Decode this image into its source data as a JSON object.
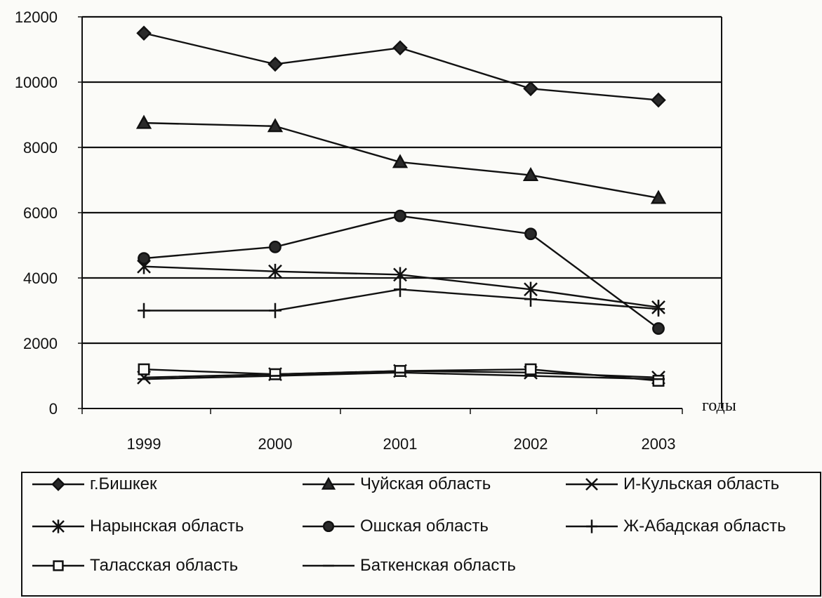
{
  "chart_data": {
    "type": "line",
    "categories": [
      "1999",
      "2000",
      "2001",
      "2002",
      "2003"
    ],
    "ylim": [
      0,
      12000
    ],
    "yticks": [
      "0",
      "2000",
      "4000",
      "6000",
      "8000",
      "10000",
      "12000"
    ],
    "xlabel": "годы",
    "ylabel": "",
    "title": "",
    "grid": "horizontal",
    "legend_position": "bottom",
    "series": [
      {
        "name": "г.Бишкек",
        "marker": "diamond",
        "values": [
          11500,
          10550,
          11050,
          9800,
          9450
        ]
      },
      {
        "name": "Чуйская область",
        "marker": "triangle",
        "values": [
          8750,
          8650,
          7550,
          7150,
          6450
        ]
      },
      {
        "name": "И-Кульская область",
        "marker": "x",
        "values": [
          950,
          1050,
          1150,
          1100,
          950
        ]
      },
      {
        "name": "Нарынская область",
        "marker": "asterisk",
        "values": [
          4350,
          4200,
          4100,
          3650,
          3100
        ]
      },
      {
        "name": "Ошская область",
        "marker": "circle",
        "values": [
          4600,
          4950,
          5900,
          5350,
          2450
        ]
      },
      {
        "name": "Ж-Абадская область",
        "marker": "plus",
        "values": [
          3000,
          3000,
          3650,
          3350,
          3050
        ]
      },
      {
        "name": "Таласская область",
        "marker": "square",
        "values": [
          1200,
          1050,
          1150,
          1200,
          850
        ]
      },
      {
        "name": "Баткенская область",
        "marker": "dash",
        "values": [
          900,
          1000,
          1100,
          1000,
          900
        ]
      }
    ]
  }
}
